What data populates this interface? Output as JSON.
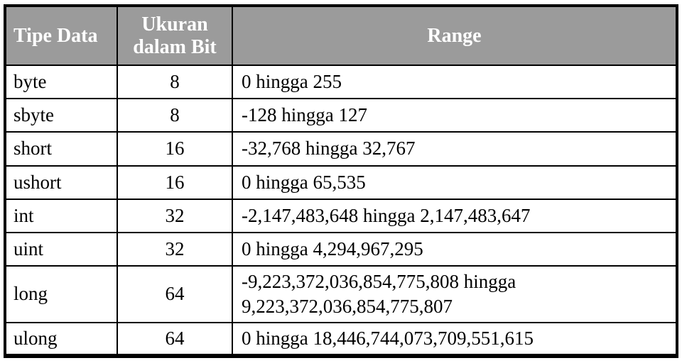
{
  "table": {
    "headers": [
      "Tipe Data",
      "Ukuran dalam Bit",
      "Range"
    ],
    "rows": [
      [
        "byte",
        "8",
        "0 hingga 255"
      ],
      [
        "sbyte",
        "8",
        "-128 hingga 127"
      ],
      [
        "short",
        "16",
        "-32,768 hingga 32,767"
      ],
      [
        "ushort",
        "16",
        "0 hingga 65,535"
      ],
      [
        "int",
        "32",
        "-2,147,483,648 hingga 2,147,483,647"
      ],
      [
        "uint",
        "32",
        "0 hingga 4,294,967,295"
      ],
      [
        "long",
        "64",
        "-9,223,372,036,854,775,808  hingga\n9,223,372,036,854,775,807"
      ],
      [
        "ulong",
        "64",
        "0 hingga 18,446,744,073,709,551,615"
      ]
    ]
  },
  "colors": {
    "header_bg": "#9b9b9b",
    "header_text": "#ffffff",
    "body_bg": "#ffffff",
    "border": "#000000"
  }
}
